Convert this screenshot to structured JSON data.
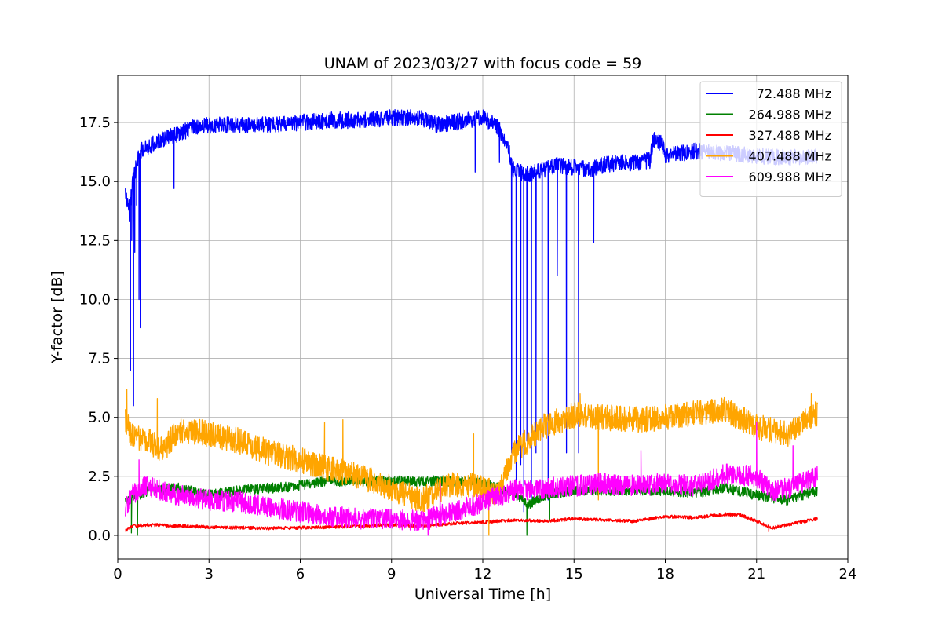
{
  "chart_data": {
    "type": "line",
    "title": "UNAM of 2023/03/27 with focus code = 59",
    "xlabel": "Universal Time [h]",
    "ylabel": "Y-factor [dB]",
    "xlim": [
      0,
      24
    ],
    "ylim": [
      -1.0,
      19.5
    ],
    "x_ticks": [
      "0",
      "3",
      "6",
      "9",
      "12",
      "15",
      "18",
      "21",
      "24"
    ],
    "x_tick_values": [
      0,
      3,
      6,
      9,
      12,
      15,
      18,
      21,
      24
    ],
    "y_ticks": [
      "0.0",
      "2.5",
      "5.0",
      "7.5",
      "10.0",
      "12.5",
      "15.0",
      "17.5"
    ],
    "y_tick_values": [
      0,
      2.5,
      5,
      7.5,
      10,
      12.5,
      15,
      17.5
    ],
    "grid": true,
    "legend_position": "top-right",
    "series": [
      {
        "name": " 72.488 MHz",
        "color": "#0000ff",
        "noise": 0.35,
        "points": [
          [
            0.25,
            14.5
          ],
          [
            0.35,
            13.8
          ],
          [
            0.42,
            14.2
          ],
          [
            0.5,
            15.0
          ],
          [
            0.6,
            15.6
          ],
          [
            0.75,
            16.3
          ],
          [
            1.0,
            16.5
          ],
          [
            1.5,
            16.8
          ],
          [
            2.0,
            17.0
          ],
          [
            2.5,
            17.3
          ],
          [
            3.0,
            17.4
          ],
          [
            4.0,
            17.4
          ],
          [
            5.0,
            17.4
          ],
          [
            6.0,
            17.5
          ],
          [
            7.0,
            17.6
          ],
          [
            8.0,
            17.6
          ],
          [
            9.0,
            17.7
          ],
          [
            10.0,
            17.7
          ],
          [
            10.5,
            17.4
          ],
          [
            11.0,
            17.5
          ],
          [
            11.5,
            17.6
          ],
          [
            12.0,
            17.7
          ],
          [
            12.5,
            17.3
          ],
          [
            12.8,
            16.6
          ],
          [
            13.0,
            15.5
          ],
          [
            13.2,
            15.4
          ],
          [
            13.5,
            15.3
          ],
          [
            14.0,
            15.5
          ],
          [
            14.5,
            15.7
          ],
          [
            15.0,
            15.6
          ],
          [
            15.5,
            15.5
          ],
          [
            16.0,
            15.7
          ],
          [
            16.5,
            15.8
          ],
          [
            17.0,
            15.8
          ],
          [
            17.5,
            15.9
          ],
          [
            17.6,
            16.8
          ],
          [
            17.9,
            16.6
          ],
          [
            18.0,
            16.1
          ],
          [
            19.0,
            16.3
          ],
          [
            20.0,
            16.2
          ],
          [
            21.0,
            16.1
          ],
          [
            22.0,
            16.0
          ],
          [
            23.0,
            16.1
          ]
        ],
        "spikes": [
          [
            0.38,
            13.3
          ],
          [
            0.42,
            7.0
          ],
          [
            0.46,
            12.5
          ],
          [
            0.52,
            5.5
          ],
          [
            0.56,
            12.0
          ],
          [
            0.62,
            14.0
          ],
          [
            0.7,
            10.0
          ],
          [
            0.74,
            8.8
          ],
          [
            1.85,
            14.7
          ],
          [
            11.75,
            15.4
          ],
          [
            12.55,
            15.8
          ],
          [
            12.95,
            3.5
          ],
          [
            13.1,
            2.0
          ],
          [
            13.25,
            3.0
          ],
          [
            13.35,
            1.0
          ],
          [
            13.45,
            4.0
          ],
          [
            13.6,
            1.5
          ],
          [
            13.75,
            3.5
          ],
          [
            13.95,
            2.0
          ],
          [
            14.15,
            1.5
          ],
          [
            14.45,
            11.0
          ],
          [
            14.75,
            3.5
          ],
          [
            15.15,
            3.5
          ],
          [
            15.65,
            12.4
          ]
        ]
      },
      {
        "name": "264.988 MHz",
        "color": "#008000",
        "noise": 0.22,
        "points": [
          [
            0.25,
            1.4
          ],
          [
            0.5,
            1.6
          ],
          [
            1.0,
            1.9
          ],
          [
            2.0,
            2.0
          ],
          [
            3.0,
            1.7
          ],
          [
            4.0,
            1.9
          ],
          [
            5.0,
            2.0
          ],
          [
            6.0,
            2.1
          ],
          [
            7.0,
            2.3
          ],
          [
            8.0,
            2.3
          ],
          [
            9.0,
            2.3
          ],
          [
            10.0,
            2.3
          ],
          [
            11.0,
            2.3
          ],
          [
            12.0,
            2.2
          ],
          [
            13.0,
            1.8
          ],
          [
            13.5,
            1.3
          ],
          [
            14.0,
            1.7
          ],
          [
            15.0,
            1.9
          ],
          [
            16.0,
            1.9
          ],
          [
            17.0,
            1.9
          ],
          [
            18.0,
            1.9
          ],
          [
            19.0,
            1.8
          ],
          [
            20.0,
            2.0
          ],
          [
            21.0,
            1.7
          ],
          [
            22.0,
            1.5
          ],
          [
            23.0,
            1.9
          ]
        ],
        "spikes": [
          [
            0.45,
            0.1
          ],
          [
            0.65,
            0.0
          ],
          [
            13.45,
            0.0
          ],
          [
            14.2,
            0.6
          ]
        ]
      },
      {
        "name": "327.488 MHz",
        "color": "#ff0000",
        "noise": 0.07,
        "points": [
          [
            0.25,
            0.2
          ],
          [
            0.5,
            0.4
          ],
          [
            1.0,
            0.45
          ],
          [
            3.0,
            0.35
          ],
          [
            5.0,
            0.3
          ],
          [
            7.0,
            0.35
          ],
          [
            9.0,
            0.45
          ],
          [
            10.0,
            0.4
          ],
          [
            11.0,
            0.5
          ],
          [
            12.0,
            0.55
          ],
          [
            13.0,
            0.65
          ],
          [
            14.0,
            0.6
          ],
          [
            15.0,
            0.7
          ],
          [
            16.0,
            0.65
          ],
          [
            17.0,
            0.6
          ],
          [
            18.0,
            0.8
          ],
          [
            19.0,
            0.75
          ],
          [
            20.0,
            0.9
          ],
          [
            20.5,
            0.85
          ],
          [
            21.0,
            0.6
          ],
          [
            21.5,
            0.3
          ],
          [
            22.0,
            0.45
          ],
          [
            23.0,
            0.7
          ]
        ],
        "spikes": [
          [
            21.4,
            0.15
          ]
        ]
      },
      {
        "name": "407.488 MHz",
        "color": "#ffa500",
        "noise": 0.55,
        "points": [
          [
            0.25,
            4.8
          ],
          [
            0.5,
            4.2
          ],
          [
            1.0,
            4.0
          ],
          [
            1.5,
            3.6
          ],
          [
            2.0,
            4.5
          ],
          [
            3.0,
            4.3
          ],
          [
            4.0,
            4.0
          ],
          [
            5.0,
            3.5
          ],
          [
            6.0,
            3.2
          ],
          [
            7.0,
            2.8
          ],
          [
            8.0,
            2.5
          ],
          [
            9.0,
            2.0
          ],
          [
            10.0,
            1.5
          ],
          [
            11.0,
            2.2
          ],
          [
            12.0,
            2.0
          ],
          [
            12.5,
            1.8
          ],
          [
            13.0,
            3.5
          ],
          [
            14.0,
            4.6
          ],
          [
            15.0,
            5.1
          ],
          [
            16.0,
            5.0
          ],
          [
            17.0,
            4.9
          ],
          [
            18.0,
            5.0
          ],
          [
            19.0,
            5.2
          ],
          [
            20.0,
            5.3
          ],
          [
            21.0,
            4.6
          ],
          [
            22.0,
            4.3
          ],
          [
            23.0,
            5.2
          ]
        ],
        "spikes": [
          [
            0.3,
            6.2
          ],
          [
            1.3,
            5.8
          ],
          [
            6.8,
            4.8
          ],
          [
            7.4,
            4.9
          ],
          [
            11.7,
            4.3
          ],
          [
            12.2,
            0.0
          ],
          [
            15.2,
            6.0
          ],
          [
            15.8,
            1.5
          ],
          [
            22.8,
            6.0
          ]
        ]
      },
      {
        "name": "609.988 MHz",
        "color": "#ff00ff",
        "noise": 0.45,
        "points": [
          [
            0.25,
            1.2
          ],
          [
            0.5,
            1.8
          ],
          [
            1.0,
            2.1
          ],
          [
            2.0,
            1.7
          ],
          [
            3.0,
            1.5
          ],
          [
            4.0,
            1.4
          ],
          [
            5.0,
            1.2
          ],
          [
            6.0,
            1.0
          ],
          [
            7.0,
            0.8
          ],
          [
            8.0,
            0.7
          ],
          [
            9.0,
            0.7
          ],
          [
            10.0,
            0.6
          ],
          [
            11.0,
            1.0
          ],
          [
            12.0,
            1.4
          ],
          [
            13.0,
            1.9
          ],
          [
            14.0,
            2.0
          ],
          [
            15.0,
            2.1
          ],
          [
            16.0,
            2.2
          ],
          [
            17.0,
            2.1
          ],
          [
            18.0,
            2.2
          ],
          [
            19.0,
            2.1
          ],
          [
            20.0,
            2.6
          ],
          [
            21.0,
            2.5
          ],
          [
            21.5,
            1.8
          ],
          [
            22.0,
            2.0
          ],
          [
            23.0,
            2.5
          ]
        ],
        "spikes": [
          [
            0.7,
            3.2
          ],
          [
            10.2,
            0.0
          ],
          [
            10.6,
            2.2
          ],
          [
            17.2,
            3.6
          ],
          [
            21.0,
            4.8
          ],
          [
            22.2,
            3.8
          ]
        ]
      }
    ]
  }
}
